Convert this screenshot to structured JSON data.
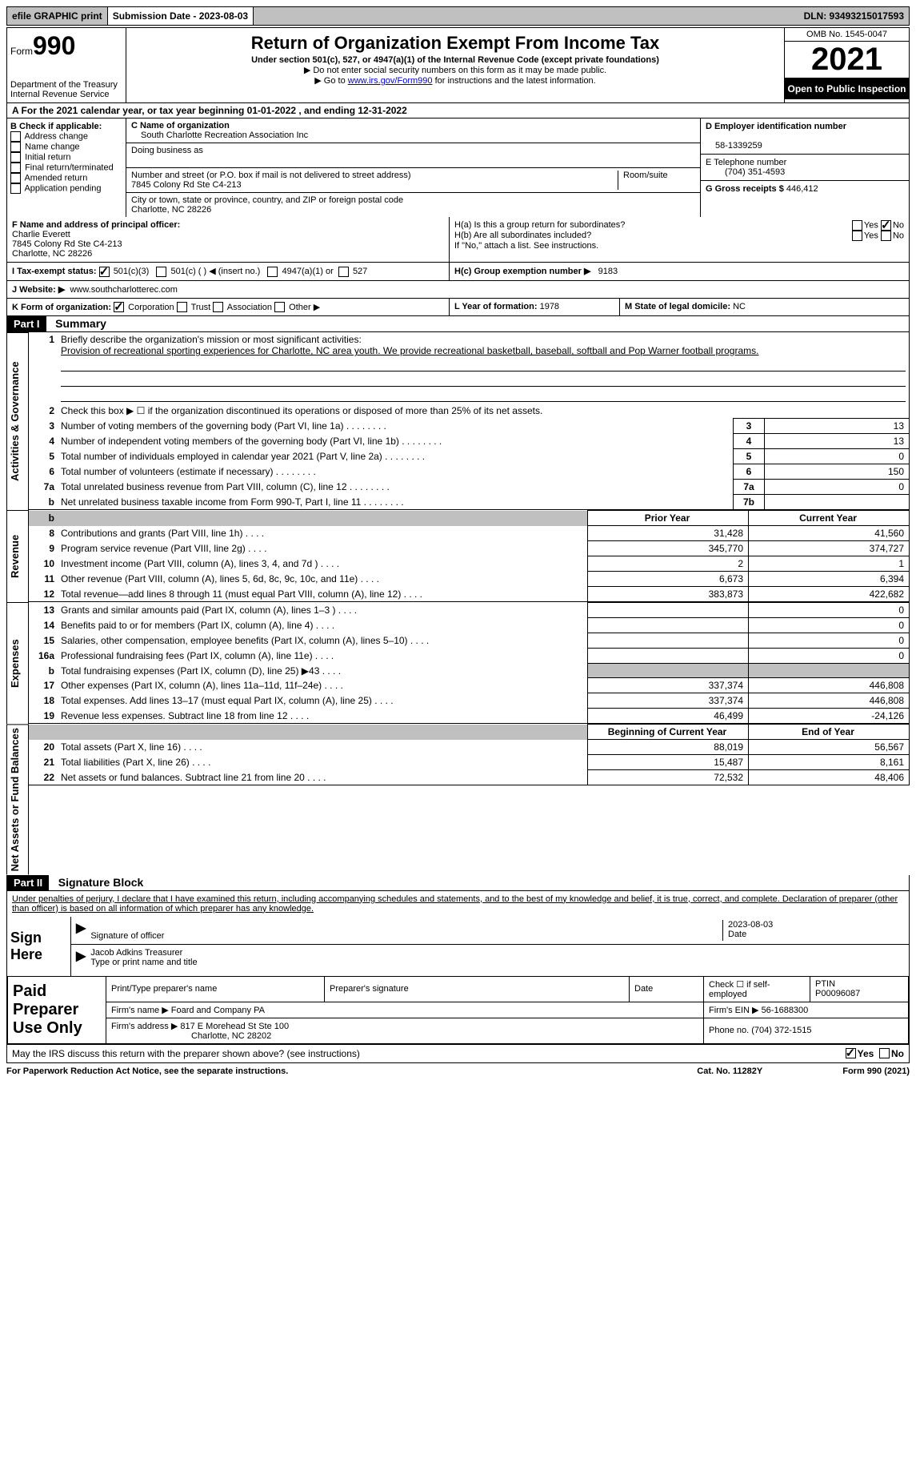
{
  "top": {
    "efile": "efile GRAPHIC print",
    "submission": "Submission Date - 2023-08-03",
    "dln": "DLN: 93493215017593"
  },
  "header": {
    "form_label": "Form",
    "form_num": "990",
    "title": "Return of Organization Exempt From Income Tax",
    "subtitle": "Under section 501(c), 527, or 4947(a)(1) of the Internal Revenue Code (except private foundations)",
    "note1": "▶ Do not enter social security numbers on this form as it may be made public.",
    "note2_pre": "▶ Go to ",
    "note2_link": "www.irs.gov/Form990",
    "note2_post": " for instructions and the latest information.",
    "dept": "Department of the Treasury",
    "irs": "Internal Revenue Service",
    "omb": "OMB No. 1545-0047",
    "year": "2021",
    "inspection": "Open to Public Inspection"
  },
  "rowA": "A For the 2021 calendar year, or tax year beginning 01-01-2022   , and ending 12-31-2022",
  "colB": {
    "label": "B Check if applicable:",
    "items": [
      "Address change",
      "Name change",
      "Initial return",
      "Final return/terminated",
      "Amended return",
      "Application pending"
    ]
  },
  "colC": {
    "name_label": "C Name of organization",
    "name": "South Charlotte Recreation Association Inc",
    "dba_label": "Doing business as",
    "dba": "",
    "street_label": "Number and street (or P.O. box if mail is not delivered to street address)",
    "room_label": "Room/suite",
    "street": "7845 Colony Rd Ste C4-213",
    "city_label": "City or town, state or province, country, and ZIP or foreign postal code",
    "city": "Charlotte, NC  28226"
  },
  "colD": {
    "ein_label": "D Employer identification number",
    "ein": "58-1339259",
    "phone_label": "E Telephone number",
    "phone": "(704) 351-4593",
    "gross_label": "G Gross receipts $",
    "gross": "446,412"
  },
  "rowF": {
    "label": "F Name and address of principal officer:",
    "name": "Charlie Everett",
    "addr1": "7845 Colony Rd Ste C4-213",
    "addr2": "Charlotte, NC  28226"
  },
  "rowH": {
    "ha": "H(a)  Is this a group return for subordinates?",
    "hb": "H(b)  Are all subordinates included?",
    "hb_note": "If \"No,\" attach a list. See instructions.",
    "hc": "H(c)  Group exemption number ▶",
    "hc_val": "9183",
    "yes": "Yes",
    "no": "No"
  },
  "rowI": {
    "label": "I  Tax-exempt status:",
    "o1": "501(c)(3)",
    "o2": "501(c) (   ) ◀ (insert no.)",
    "o3": "4947(a)(1) or",
    "o4": "527"
  },
  "rowJ": {
    "label": "J  Website: ▶",
    "value": "www.southcharlotterec.com"
  },
  "rowK": {
    "label": "K Form of organization:",
    "o1": "Corporation",
    "o2": "Trust",
    "o3": "Association",
    "o4": "Other ▶"
  },
  "rowL": {
    "label": "L Year of formation:",
    "value": "1978"
  },
  "rowM": {
    "label": "M State of legal domicile:",
    "value": "NC"
  },
  "part1": {
    "header": "Part I",
    "title": "Summary"
  },
  "summary": {
    "line1_label": "Briefly describe the organization's mission or most significant activities:",
    "line1_text": "Provision of recreational sporting experiences for Charlotte, NC area youth. We provide recreational basketball, baseball, softball and Pop Warner football programs.",
    "line2": "Check this box ▶ ☐ if the organization discontinued its operations or disposed of more than 25% of its net assets.",
    "rows_single": [
      {
        "n": "3",
        "d": "Number of voting members of the governing body (Part VI, line 1a)",
        "box": "3",
        "v": "13"
      },
      {
        "n": "4",
        "d": "Number of independent voting members of the governing body (Part VI, line 1b)",
        "box": "4",
        "v": "13"
      },
      {
        "n": "5",
        "d": "Total number of individuals employed in calendar year 2021 (Part V, line 2a)",
        "box": "5",
        "v": "0"
      },
      {
        "n": "6",
        "d": "Total number of volunteers (estimate if necessary)",
        "box": "6",
        "v": "150"
      },
      {
        "n": "7a",
        "d": "Total unrelated business revenue from Part VIII, column (C), line 12",
        "box": "7a",
        "v": "0"
      },
      {
        "n": "b",
        "d": "Net unrelated business taxable income from Form 990-T, Part I, line 11",
        "box": "7b",
        "v": ""
      }
    ],
    "prior_label": "Prior Year",
    "current_label": "Current Year",
    "revenue_rows": [
      {
        "n": "8",
        "d": "Contributions and grants (Part VIII, line 1h)",
        "p": "31,428",
        "c": "41,560"
      },
      {
        "n": "9",
        "d": "Program service revenue (Part VIII, line 2g)",
        "p": "345,770",
        "c": "374,727"
      },
      {
        "n": "10",
        "d": "Investment income (Part VIII, column (A), lines 3, 4, and 7d )",
        "p": "2",
        "c": "1"
      },
      {
        "n": "11",
        "d": "Other revenue (Part VIII, column (A), lines 5, 6d, 8c, 9c, 10c, and 11e)",
        "p": "6,673",
        "c": "6,394"
      },
      {
        "n": "12",
        "d": "Total revenue—add lines 8 through 11 (must equal Part VIII, column (A), line 12)",
        "p": "383,873",
        "c": "422,682"
      }
    ],
    "expense_rows": [
      {
        "n": "13",
        "d": "Grants and similar amounts paid (Part IX, column (A), lines 1–3 )",
        "p": "",
        "c": "0"
      },
      {
        "n": "14",
        "d": "Benefits paid to or for members (Part IX, column (A), line 4)",
        "p": "",
        "c": "0"
      },
      {
        "n": "15",
        "d": "Salaries, other compensation, employee benefits (Part IX, column (A), lines 5–10)",
        "p": "",
        "c": "0"
      },
      {
        "n": "16a",
        "d": "Professional fundraising fees (Part IX, column (A), line 11e)",
        "p": "",
        "c": "0"
      },
      {
        "n": "b",
        "d": "Total fundraising expenses (Part IX, column (D), line 25) ▶43",
        "p": "shaded",
        "c": "shaded"
      },
      {
        "n": "17",
        "d": "Other expenses (Part IX, column (A), lines 11a–11d, 11f–24e)",
        "p": "337,374",
        "c": "446,808"
      },
      {
        "n": "18",
        "d": "Total expenses. Add lines 13–17 (must equal Part IX, column (A), line 25)",
        "p": "337,374",
        "c": "446,808"
      },
      {
        "n": "19",
        "d": "Revenue less expenses. Subtract line 18 from line 12",
        "p": "46,499",
        "c": "-24,126"
      }
    ],
    "begin_label": "Beginning of Current Year",
    "end_label": "End of Year",
    "net_rows": [
      {
        "n": "20",
        "d": "Total assets (Part X, line 16)",
        "p": "88,019",
        "c": "56,567"
      },
      {
        "n": "21",
        "d": "Total liabilities (Part X, line 26)",
        "p": "15,487",
        "c": "8,161"
      },
      {
        "n": "22",
        "d": "Net assets or fund balances. Subtract line 21 from line 20",
        "p": "72,532",
        "c": "48,406"
      }
    ],
    "side_labels": {
      "gov": "Activities & Governance",
      "rev": "Revenue",
      "exp": "Expenses",
      "net": "Net Assets or Fund Balances"
    }
  },
  "part2": {
    "header": "Part II",
    "title": "Signature Block"
  },
  "sig": {
    "penalty": "Under penalties of perjury, I declare that I have examined this return, including accompanying schedules and statements, and to the best of my knowledge and belief, it is true, correct, and complete. Declaration of preparer (other than officer) is based on all information of which preparer has any knowledge.",
    "sign_here": "Sign Here",
    "sig_officer": "Signature of officer",
    "sig_date": "2023-08-03",
    "date_label": "Date",
    "officer_name": "Jacob Adkins  Treasurer",
    "name_label": "Type or print name and title",
    "paid": "Paid Preparer Use Only",
    "prep_name_label": "Print/Type preparer's name",
    "prep_sig_label": "Preparer's signature",
    "check_self": "Check ☐ if self-employed",
    "ptin_label": "PTIN",
    "ptin": "P00096087",
    "firm_name_label": "Firm's name    ▶",
    "firm_name": "Foard and Company PA",
    "firm_ein_label": "Firm's EIN ▶",
    "firm_ein": "56-1688300",
    "firm_addr_label": "Firm's address ▶",
    "firm_addr": "817 E Morehead St Ste 100",
    "firm_city": "Charlotte, NC  28202",
    "phone_label": "Phone no.",
    "phone": "(704) 372-1515"
  },
  "footer": {
    "discuss": "May the IRS discuss this return with the preparer shown above? (see instructions)",
    "yes": "Yes",
    "no": "No",
    "paperwork": "For Paperwork Reduction Act Notice, see the separate instructions.",
    "cat": "Cat. No. 11282Y",
    "form": "Form 990 (2021)"
  },
  "colors": {
    "black": "#000000",
    "gray": "#c0c0c0",
    "link": "#0000cc"
  }
}
